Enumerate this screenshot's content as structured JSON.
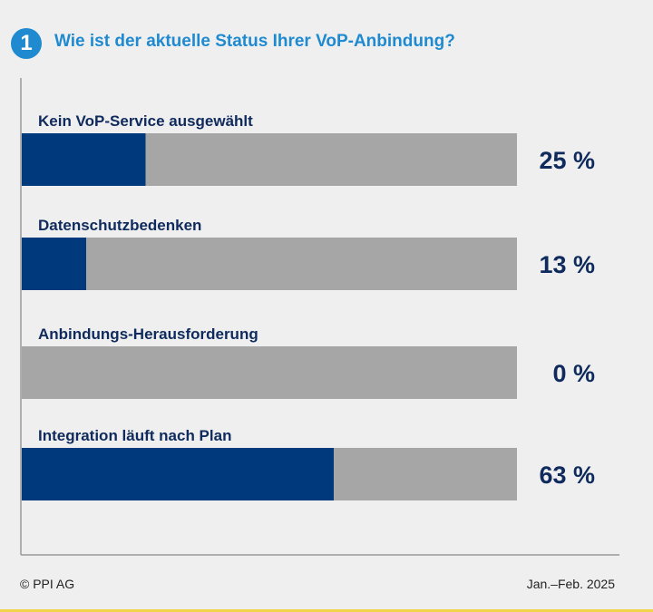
{
  "header": {
    "badge_number": "1",
    "title": "Wie ist der aktuelle Status Ihrer VoP-Anbindung?"
  },
  "colors": {
    "accent": "#1f8ad0",
    "bar_fill": "#003a7c",
    "bar_track": "#a6a6a6",
    "label_text": "#0f2a5c",
    "axis": "#9a9a9a",
    "background": "#efefef"
  },
  "chart_data": {
    "type": "bar",
    "orientation": "horizontal",
    "categories": [
      "Kein VoP-Service ausgewählt",
      "Datenschutzbedenken",
      "Anbindungs-Herausforderung",
      "Integration läuft nach Plan"
    ],
    "values": [
      25,
      13,
      0,
      63
    ],
    "value_labels": [
      "25 %",
      "13 %",
      "0 %",
      "63 %"
    ],
    "xlim": [
      0,
      100
    ],
    "unit": "%"
  },
  "footer": {
    "source": "© PPI AG",
    "period": "Jan.–Feb. 2025"
  }
}
